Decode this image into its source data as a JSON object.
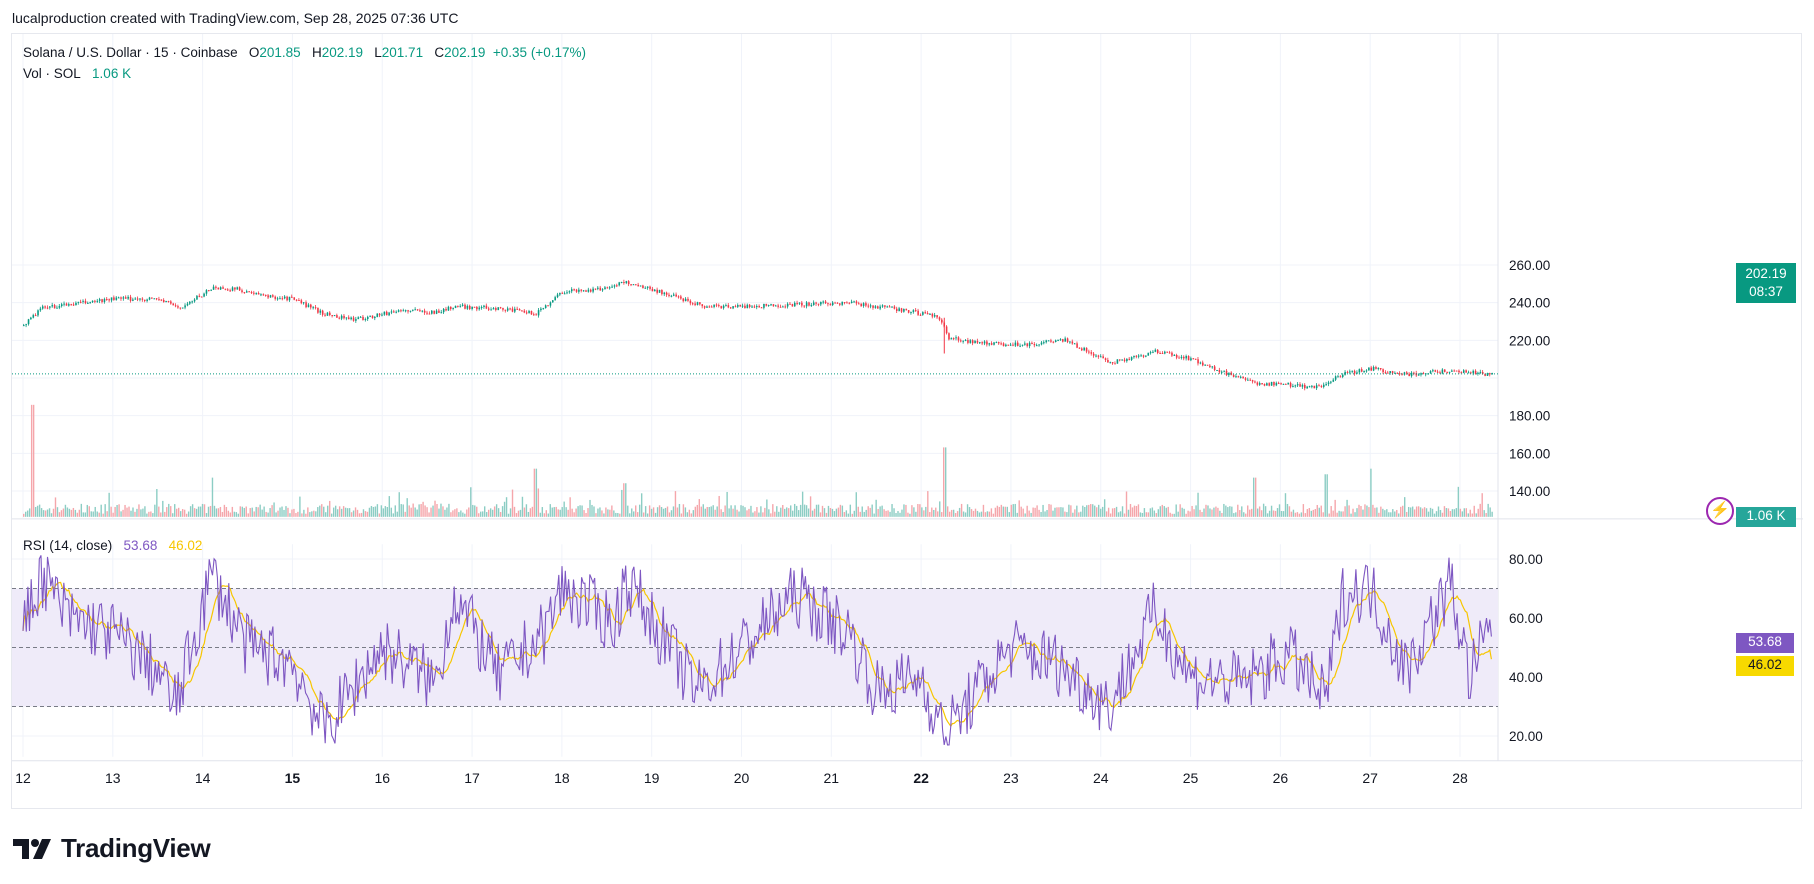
{
  "attribution": "lucalproduction created with TradingView.com, Sep 28, 2025 07:36 UTC",
  "legend": {
    "symbol": "Solana / U.S. Dollar · 15 · Coinbase",
    "o_label": "O",
    "o_value": "201.85",
    "h_label": "H",
    "h_value": "202.19",
    "l_label": "L",
    "l_value": "201.71",
    "c_label": "C",
    "c_value": "202.19",
    "change": "+0.35 (+0.17%)",
    "vol_label": "Vol · SOL",
    "vol_value": "1.06 K",
    "rsi_label": "RSI (14, close)",
    "rsi_value": "53.68",
    "rsi_ma_value": "46.02"
  },
  "tags": {
    "price": "202.19",
    "countdown": "08:37",
    "volume": "1.06 K",
    "rsi": "53.68",
    "rsi_ma": "46.02"
  },
  "footer": {
    "brand": "TradingView"
  },
  "colors": {
    "up": "#089981",
    "down": "#f23645",
    "volume_up": "#8ccdc4",
    "volume_down": "#f5a6ab",
    "rsi": "#7e57c2",
    "rsi_ma": "#f7c600",
    "rsi_band": "#efebf9",
    "grid": "#f0f3fa"
  },
  "chart_data": [
    {
      "type": "candlestick",
      "title": "Solana / U.S. Dollar · 15 · Coinbase",
      "x_ticks": [
        "12",
        "13",
        "14",
        "15",
        "16",
        "17",
        "18",
        "19",
        "20",
        "21",
        "22",
        "23",
        "24",
        "25",
        "26",
        "27",
        "28"
      ],
      "bold_ticks": [
        "15",
        "22"
      ],
      "y_ticks": [
        140,
        160,
        180,
        200,
        220,
        240,
        260
      ],
      "y_tick_labels": [
        "140.00",
        "160.00",
        "180.00",
        "",
        "220.00",
        "240.00",
        "260.00"
      ],
      "ylim": [
        130,
        265
      ],
      "last_price": 202.19,
      "approx_path": [
        {
          "day": 12.0,
          "price": 228
        },
        {
          "day": 12.2,
          "price": 237
        },
        {
          "day": 12.5,
          "price": 239
        },
        {
          "day": 13.0,
          "price": 242
        },
        {
          "day": 13.5,
          "price": 242
        },
        {
          "day": 13.75,
          "price": 237
        },
        {
          "day": 14.1,
          "price": 248
        },
        {
          "day": 14.4,
          "price": 247
        },
        {
          "day": 14.6,
          "price": 244
        },
        {
          "day": 15.0,
          "price": 242
        },
        {
          "day": 15.35,
          "price": 234
        },
        {
          "day": 15.7,
          "price": 231
        },
        {
          "day": 16.2,
          "price": 236
        },
        {
          "day": 16.6,
          "price": 235
        },
        {
          "day": 16.8,
          "price": 238
        },
        {
          "day": 17.3,
          "price": 237
        },
        {
          "day": 17.7,
          "price": 234
        },
        {
          "day": 18.0,
          "price": 246
        },
        {
          "day": 18.4,
          "price": 247
        },
        {
          "day": 18.7,
          "price": 251
        },
        {
          "day": 19.0,
          "price": 247
        },
        {
          "day": 19.6,
          "price": 238
        },
        {
          "day": 20.0,
          "price": 238
        },
        {
          "day": 20.6,
          "price": 239
        },
        {
          "day": 21.2,
          "price": 240
        },
        {
          "day": 21.8,
          "price": 236
        },
        {
          "day": 22.2,
          "price": 232
        },
        {
          "day": 22.3,
          "price": 221
        },
        {
          "day": 22.8,
          "price": 218
        },
        {
          "day": 23.2,
          "price": 218
        },
        {
          "day": 23.6,
          "price": 220
        },
        {
          "day": 24.1,
          "price": 208
        },
        {
          "day": 24.6,
          "price": 214
        },
        {
          "day": 25.0,
          "price": 210
        },
        {
          "day": 25.3,
          "price": 204
        },
        {
          "day": 25.7,
          "price": 197
        },
        {
          "day": 26.0,
          "price": 197
        },
        {
          "day": 26.4,
          "price": 195
        },
        {
          "day": 26.7,
          "price": 202
        },
        {
          "day": 27.0,
          "price": 205
        },
        {
          "day": 27.4,
          "price": 202
        },
        {
          "day": 27.9,
          "price": 204
        },
        {
          "day": 28.3,
          "price": 202
        }
      ]
    },
    {
      "type": "bar",
      "title": "Vol · SOL",
      "last_value": "1.06 K",
      "spikes": [
        {
          "day": 12.1,
          "rel": 1.0
        },
        {
          "day": 14.1,
          "rel": 0.35
        },
        {
          "day": 17.7,
          "rel": 0.43
        },
        {
          "day": 18.7,
          "rel": 0.3
        },
        {
          "day": 22.25,
          "rel": 0.62
        },
        {
          "day": 25.7,
          "rel": 0.35
        },
        {
          "day": 26.5,
          "rel": 0.38
        },
        {
          "day": 27.0,
          "rel": 0.43
        }
      ]
    },
    {
      "type": "line",
      "title": "RSI (14, close)",
      "series": [
        {
          "name": "RSI (14, close)",
          "last": 53.68
        },
        {
          "name": "MA",
          "last": 46.02
        }
      ],
      "y_ticks": [
        20,
        40,
        60,
        80
      ],
      "y_tick_labels": [
        "20.00",
        "40.00",
        "60.00",
        "80.00"
      ],
      "bands": [
        30,
        50,
        70
      ],
      "ylim": [
        15,
        85
      ],
      "approx_path": [
        {
          "day": 12.0,
          "rsi": 55
        },
        {
          "day": 12.2,
          "rsi": 75
        },
        {
          "day": 12.5,
          "rsi": 60
        },
        {
          "day": 13.0,
          "rsi": 55
        },
        {
          "day": 13.5,
          "rsi": 42
        },
        {
          "day": 13.7,
          "rsi": 30
        },
        {
          "day": 14.1,
          "rsi": 75
        },
        {
          "day": 14.5,
          "rsi": 50
        },
        {
          "day": 15.0,
          "rsi": 45
        },
        {
          "day": 15.35,
          "rsi": 22
        },
        {
          "day": 16.0,
          "rsi": 50
        },
        {
          "day": 16.6,
          "rsi": 38
        },
        {
          "day": 16.8,
          "rsi": 68
        },
        {
          "day": 17.3,
          "rsi": 40
        },
        {
          "day": 17.8,
          "rsi": 55
        },
        {
          "day": 18.0,
          "rsi": 70
        },
        {
          "day": 18.6,
          "rsi": 58
        },
        {
          "day": 18.7,
          "rsi": 74
        },
        {
          "day": 19.5,
          "rsi": 35
        },
        {
          "day": 20.0,
          "rsi": 50
        },
        {
          "day": 20.6,
          "rsi": 68
        },
        {
          "day": 21.2,
          "rsi": 55
        },
        {
          "day": 21.5,
          "rsi": 35
        },
        {
          "day": 22.0,
          "rsi": 40
        },
        {
          "day": 22.25,
          "rsi": 20
        },
        {
          "day": 23.0,
          "rsi": 50
        },
        {
          "day": 23.5,
          "rsi": 45
        },
        {
          "day": 24.1,
          "rsi": 30
        },
        {
          "day": 24.6,
          "rsi": 62
        },
        {
          "day": 25.0,
          "rsi": 40
        },
        {
          "day": 25.6,
          "rsi": 38
        },
        {
          "day": 26.1,
          "rsi": 48
        },
        {
          "day": 26.5,
          "rsi": 32
        },
        {
          "day": 26.7,
          "rsi": 68
        },
        {
          "day": 27.0,
          "rsi": 70
        },
        {
          "day": 27.4,
          "rsi": 42
        },
        {
          "day": 27.9,
          "rsi": 72
        },
        {
          "day": 28.1,
          "rsi": 40
        },
        {
          "day": 28.3,
          "rsi": 53.68
        }
      ]
    }
  ]
}
